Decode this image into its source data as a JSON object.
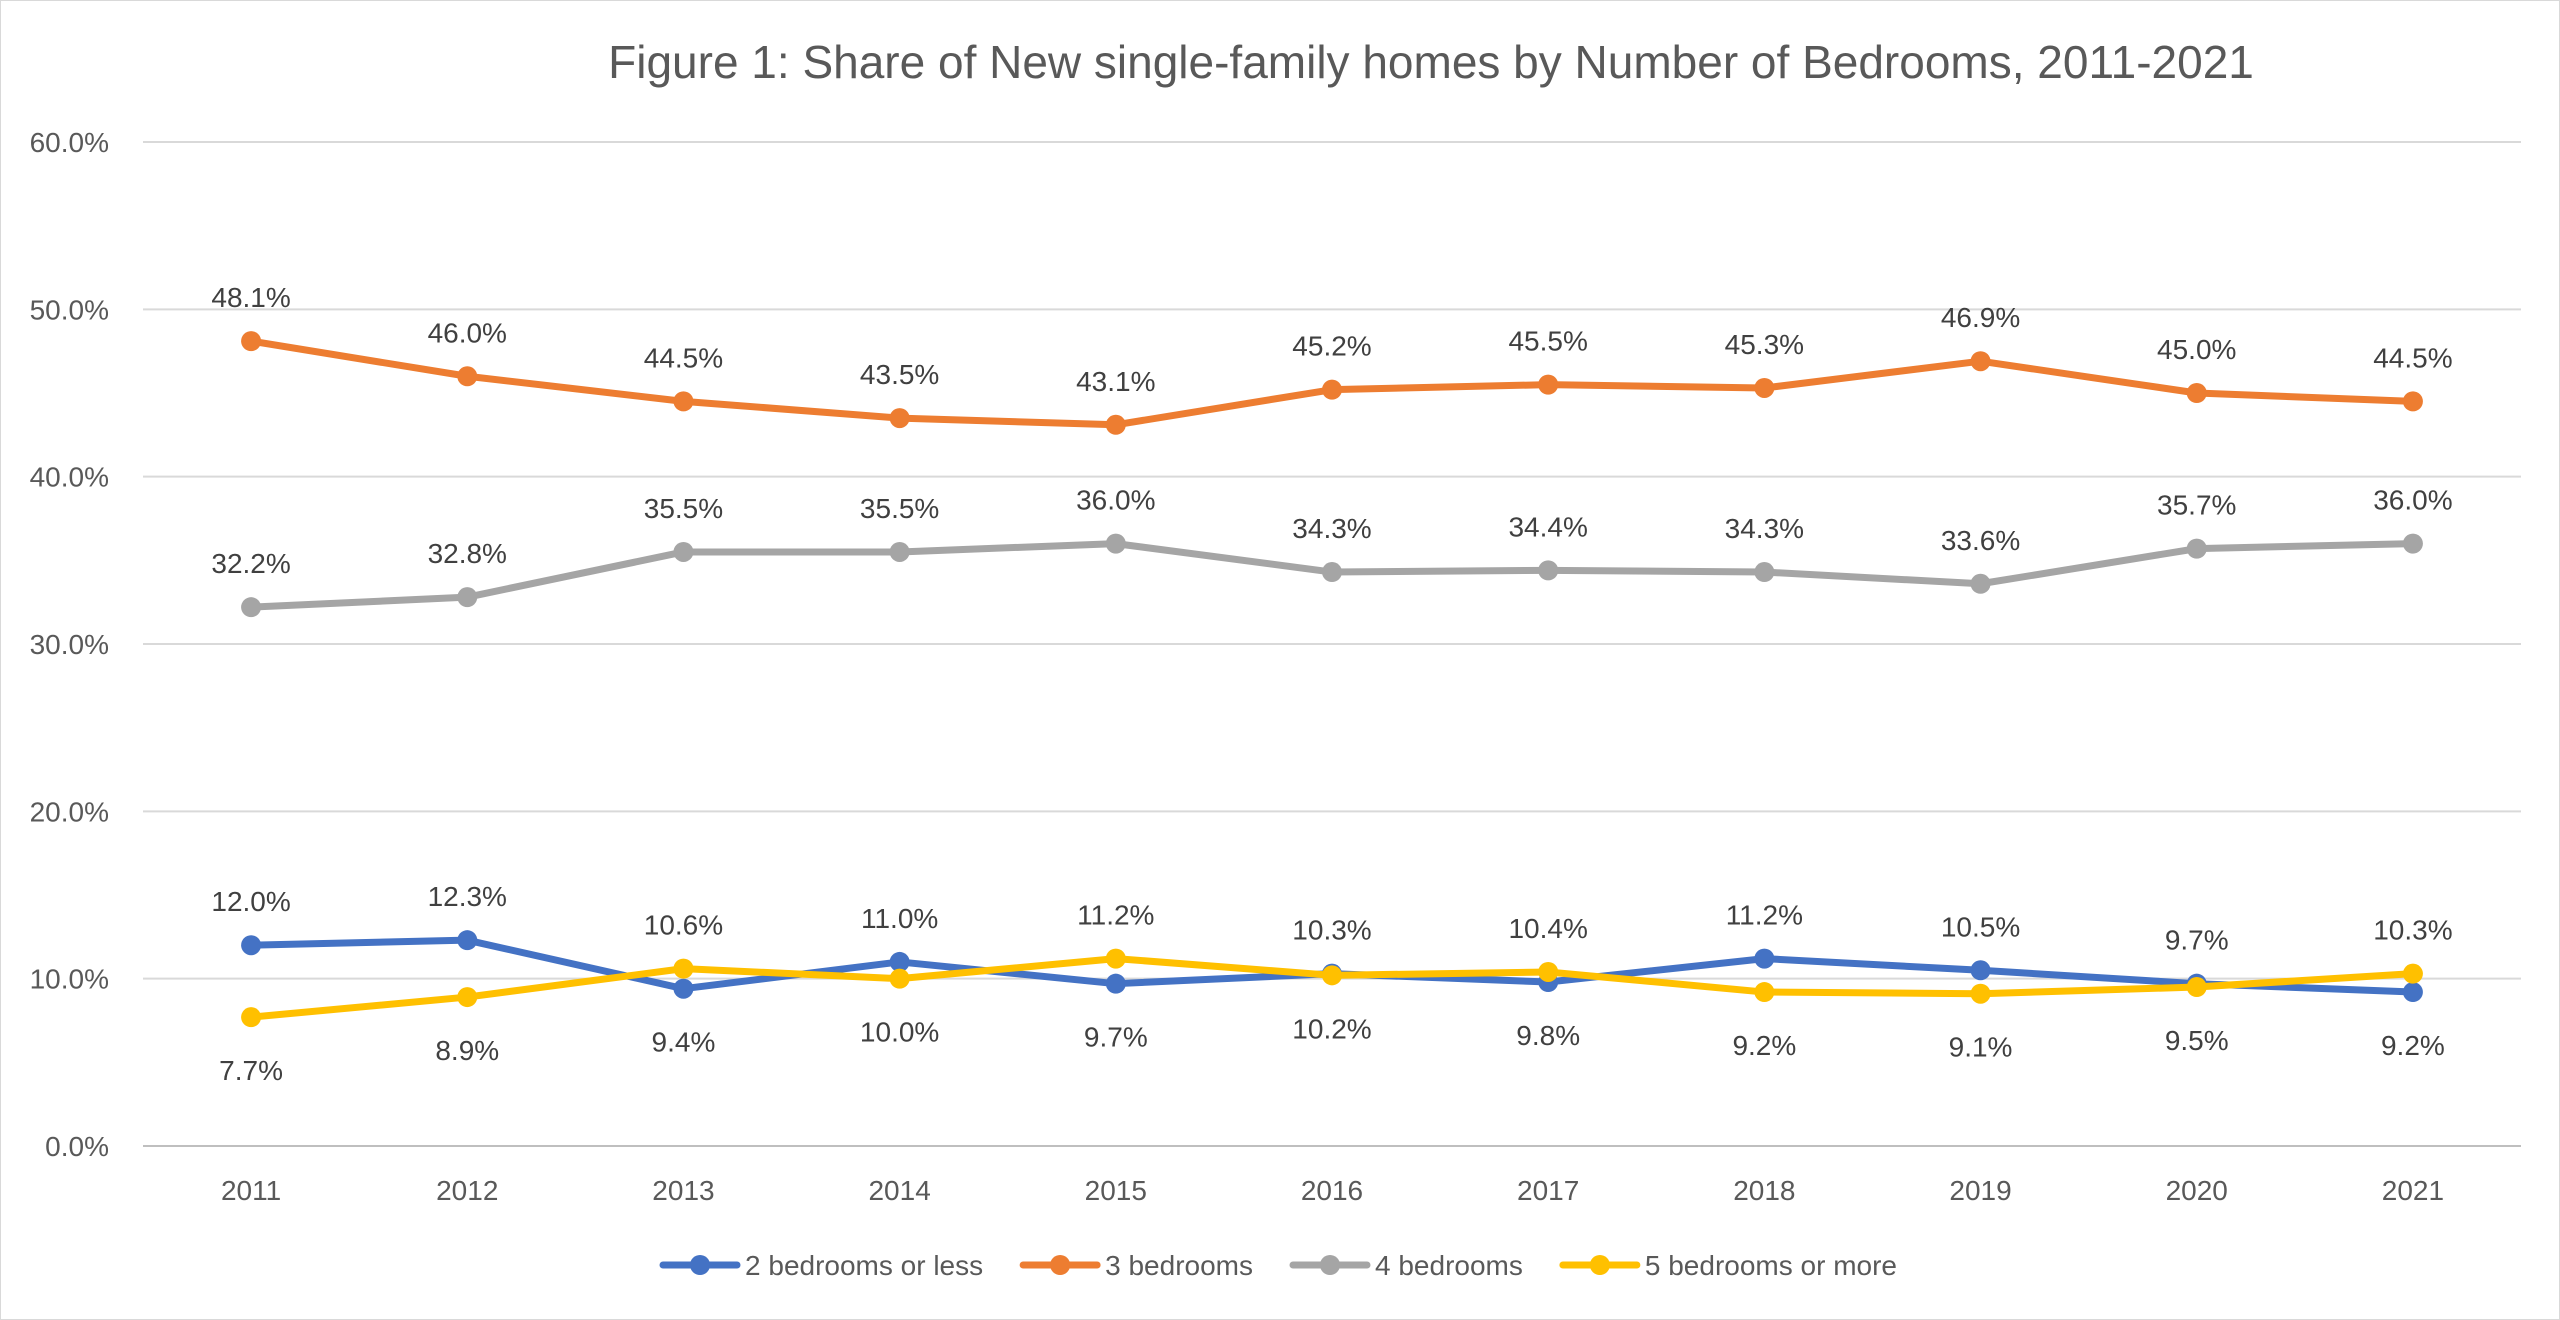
{
  "chart_data": {
    "type": "line",
    "title": "Figure 1: Share of New single-family homes by Number of Bedrooms, 2011-2021",
    "xlabel": "",
    "ylabel": "",
    "categories": [
      "2011",
      "2012",
      "2013",
      "2014",
      "2015",
      "2016",
      "2017",
      "2018",
      "2019",
      "2020",
      "2021"
    ],
    "ylim": [
      0,
      60
    ],
    "yticks": [
      0,
      10,
      20,
      30,
      40,
      50,
      60
    ],
    "ytick_labels": [
      "0.0%",
      "10.0%",
      "20.0%",
      "30.0%",
      "40.0%",
      "50.0%",
      "60.0%"
    ],
    "grid": true,
    "legend_position": "bottom",
    "series": [
      {
        "name": "2 bedrooms or less",
        "color": "#4472c4",
        "values": [
          12.0,
          12.3,
          9.4,
          11.0,
          9.7,
          10.3,
          9.8,
          11.2,
          10.5,
          9.7,
          9.2
        ],
        "labels": [
          "12.0%",
          "12.3%",
          "9.4%",
          "11.0%",
          "9.7%",
          "10.3%",
          "9.8%",
          "11.2%",
          "10.5%",
          "9.7%",
          "9.2%"
        ],
        "label_pos": [
          "above",
          "above",
          "below",
          "above",
          "below",
          "above",
          "below",
          "above",
          "above",
          "above",
          "below"
        ]
      },
      {
        "name": "3 bedrooms",
        "color": "#ed7d31",
        "values": [
          48.1,
          46.0,
          44.5,
          43.5,
          43.1,
          45.2,
          45.5,
          45.3,
          46.9,
          45.0,
          44.5
        ],
        "labels": [
          "48.1%",
          "46.0%",
          "44.5%",
          "43.5%",
          "43.1%",
          "45.2%",
          "45.5%",
          "45.3%",
          "46.9%",
          "45.0%",
          "44.5%"
        ],
        "label_pos": [
          "above",
          "above",
          "above",
          "above",
          "above",
          "above",
          "above",
          "above",
          "above",
          "above",
          "above"
        ]
      },
      {
        "name": "4 bedrooms",
        "color": "#a5a5a5",
        "values": [
          32.2,
          32.8,
          35.5,
          35.5,
          36.0,
          34.3,
          34.4,
          34.3,
          33.6,
          35.7,
          36.0
        ],
        "labels": [
          "32.2%",
          "32.8%",
          "35.5%",
          "35.5%",
          "36.0%",
          "34.3%",
          "34.4%",
          "34.3%",
          "33.6%",
          "35.7%",
          "36.0%"
        ],
        "label_pos": [
          "above",
          "above",
          "above",
          "above",
          "above",
          "above",
          "above",
          "above",
          "above",
          "above",
          "above"
        ]
      },
      {
        "name": "5 bedrooms or more",
        "color": "#ffc000",
        "values": [
          7.7,
          8.9,
          10.6,
          10.0,
          11.2,
          10.2,
          10.4,
          9.2,
          9.1,
          9.5,
          10.3
        ],
        "labels": [
          "7.7%",
          "8.9%",
          "10.6%",
          "10.0%",
          "11.2%",
          "10.2%",
          "10.4%",
          "9.2%",
          "9.1%",
          "9.5%",
          "10.3%"
        ],
        "label_pos": [
          "below",
          "below",
          "above",
          "below",
          "above",
          "below",
          "above",
          "below",
          "below",
          "below",
          "above"
        ]
      }
    ]
  }
}
